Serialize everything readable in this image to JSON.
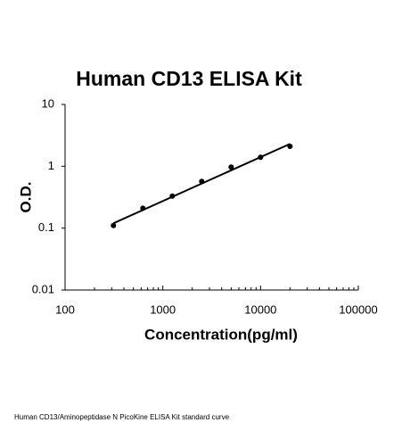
{
  "chart_data": {
    "type": "scatter",
    "title": "Human CD13 ELISA Kit",
    "x_label": "Concentration(pg/ml)",
    "y_label": "O.D.",
    "caption": "Human CD13/Aminopeptidase N PicoKine ELISA Kit standard curve",
    "log_x": true,
    "log_y": true,
    "grid": false,
    "xlim": [
      100,
      100000
    ],
    "xticks": [
      100,
      1000,
      10000,
      100000
    ],
    "ylim": [
      0.01,
      10
    ],
    "yticks": [
      0.01,
      0.1,
      1,
      10
    ],
    "series": [
      {
        "color": "#000000",
        "x": [
          312.5,
          625,
          1250,
          2500,
          5000,
          10000,
          20000
        ],
        "values": [
          0.11,
          0.21,
          0.33,
          0.57,
          0.97,
          1.4,
          2.1
        ]
      }
    ],
    "fit": {
      "color": "#000000",
      "x": [
        312.5,
        20000
      ],
      "values": [
        0.12,
        2.3
      ]
    }
  }
}
